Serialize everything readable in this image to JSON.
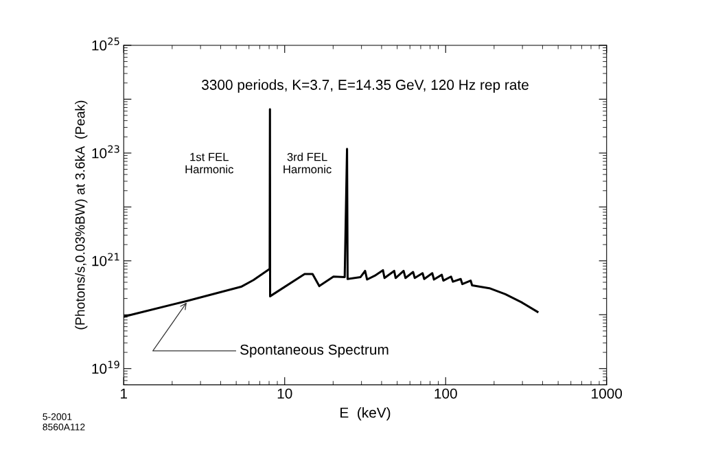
{
  "chart_data": {
    "type": "line",
    "xlabel": "E  (keV)",
    "ylabel": "(Photons/s,0.03%BW) at 3.6kA  (Peak)",
    "log": "xy",
    "xlim": [
      1,
      1000
    ],
    "ylim": [
      5e+18,
      1e+25
    ],
    "xticks": [
      1,
      10,
      100,
      1000
    ],
    "yticks": [
      {
        "value": 1e+19,
        "label": "10$^{19}$"
      },
      {
        "value": 1e+20,
        "label": null
      },
      {
        "value": 1e+21,
        "label": "10$^{21}$"
      },
      {
        "value": 1e+22,
        "label": null
      },
      {
        "value": 1e+23,
        "label": "10$^{23}$"
      },
      {
        "value": 1e+24,
        "label": null
      },
      {
        "value": 1e+25,
        "label": "10$^{25}$"
      }
    ],
    "series": [
      {
        "color": "#000000",
        "x": [
          1,
          2.47,
          5.36,
          6.4,
          8.07,
          8.1,
          8.12,
          13.3,
          14.9,
          16.4,
          20.1,
          23.6,
          24.4,
          24.6,
          29.6,
          31.6,
          32.5,
          36.3,
          40.8,
          41.7,
          47.9,
          48.9,
          54.8,
          56.3,
          62.8,
          64.3,
          71.9,
          73.6,
          82.6,
          84.6,
          94.6,
          96.8,
          108,
          111,
          124,
          127,
          143,
          146,
          187,
          235,
          296,
          372
        ],
        "values": [
          9.2e+19,
          1.8e+20,
          3.3e+20,
          4.4e+20,
          7.1e+20,
          6.5e+23,
          2.2e+20,
          5.7e+20,
          5.7e+20,
          3.4e+20,
          5.1e+20,
          5e+20,
          1.2e+23,
          4.6e+20,
          5e+20,
          6.5e+20,
          4.5e+20,
          5.3e+20,
          6.7e+20,
          4.8e+20,
          6.5e+20,
          4.8e+20,
          6.5e+20,
          4.8e+20,
          6.2e+20,
          4.8e+20,
          5.9e+20,
          4.6e+20,
          5.9e+20,
          4.5e+20,
          5.5e+20,
          4.3e+20,
          5.1e+20,
          4.1e+20,
          4.6e+20,
          3.7e+20,
          4.3e+20,
          3.5e+20,
          3.1e+20,
          2.4e+20,
          1.7e+20,
          1.13e+20
        ]
      }
    ],
    "annotations": [
      "3300 periods, K=3.7, E=14.35 GeV, 120 Hz rep rate",
      "1st FEL\nHarmonic",
      "3rd FEL\nHarmonic",
      {
        "text": "Spontaneous Spectrum",
        "x": 2.5,
        "y": 1.8e+20
      },
      "5-2001\n8560A112"
    ]
  }
}
